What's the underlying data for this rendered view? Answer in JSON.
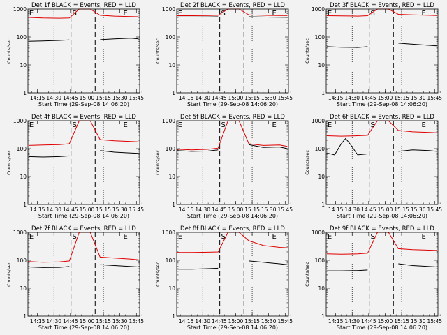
{
  "colors": {
    "background": "#f2f2f2",
    "events": "#000000",
    "lld": "#e00000",
    "axis": "#000000"
  },
  "chart_data": [
    {
      "type": "line",
      "title": "Det 1f BLACK = Events, RED = LLD",
      "xlabel": "Start Time (29-Sep-08 14:06:20)",
      "ylabel": "Counts/sec",
      "y_scale": "log",
      "ylim": [
        1,
        1000
      ],
      "y_ticks": [
        "1",
        "10",
        "100",
        "1000"
      ],
      "x_ticks": [
        "14:15",
        "14:30",
        "14:45",
        "15:00",
        "15:15",
        "15:30",
        "15:45"
      ],
      "markers": [
        "E",
        "S",
        "E"
      ],
      "series": [
        {
          "color": "#000000",
          "x": [
            "14:07",
            "14:20",
            "14:35",
            "14:44",
            "14:53",
            "15:03",
            "15:12",
            "15:25",
            "15:40",
            "15:47"
          ],
          "y": [
            70,
            72,
            75,
            78,
            null,
            null,
            80,
            85,
            90,
            85
          ]
        },
        {
          "color": "#e00000",
          "x": [
            "14:07",
            "14:20",
            "14:35",
            "14:44",
            "14:53",
            "15:03",
            "15:12",
            "15:25",
            "15:40",
            "15:47"
          ],
          "y": [
            500,
            480,
            470,
            480,
            1000,
            1000,
            600,
            560,
            540,
            530
          ]
        }
      ]
    },
    {
      "type": "line",
      "title": "Det 2f BLACK = Events, RED = LLD",
      "xlabel": "Start Time (29-Sep-08 14:06:20)",
      "ylabel": "Counts/sec",
      "y_scale": "log",
      "ylim": [
        1,
        1000
      ],
      "y_ticks": [
        "1",
        "10",
        "100",
        "1000"
      ],
      "x_ticks": [
        "14:15",
        "14:30",
        "14:45",
        "15:00",
        "15:15",
        "15:30",
        "15:45"
      ],
      "markers": [
        "E",
        "S",
        "E"
      ],
      "series": [
        {
          "color": "#000000",
          "x": [
            "14:07",
            "14:20",
            "14:35",
            "14:44",
            "14:53",
            "15:03",
            "15:12",
            "15:25",
            "15:40",
            "15:47"
          ],
          "y": [
            520,
            520,
            525,
            530,
            null,
            null,
            530,
            520,
            510,
            505
          ]
        },
        {
          "color": "#e00000",
          "x": [
            "14:07",
            "14:20",
            "14:35",
            "14:44",
            "14:53",
            "15:03",
            "15:12",
            "15:25",
            "15:40",
            "15:47"
          ],
          "y": [
            580,
            580,
            585,
            600,
            1000,
            1000,
            620,
            600,
            590,
            585
          ]
        }
      ]
    },
    {
      "type": "line",
      "title": "Det 3f BLACK = Events, RED = LLD",
      "xlabel": "Start Time (29-Sep-08 14:06:20)",
      "ylabel": "Counts/sec",
      "y_scale": "log",
      "ylim": [
        1,
        1000
      ],
      "y_ticks": [
        "1",
        "10",
        "100",
        "1000"
      ],
      "x_ticks": [
        "14:15",
        "14:30",
        "14:45",
        "15:00",
        "15:15",
        "15:30",
        "15:45"
      ],
      "markers": [
        "E",
        "S",
        "E"
      ],
      "series": [
        {
          "color": "#000000",
          "x": [
            "14:07",
            "14:20",
            "14:35",
            "14:44",
            "14:53",
            "15:03",
            "15:12",
            "15:25",
            "15:40",
            "15:47"
          ],
          "y": [
            45,
            43,
            42,
            45,
            null,
            null,
            60,
            55,
            50,
            48
          ]
        },
        {
          "color": "#e00000",
          "x": [
            "14:07",
            "14:20",
            "14:35",
            "14:44",
            "14:53",
            "15:03",
            "15:12",
            "15:25",
            "15:40",
            "15:47"
          ],
          "y": [
            580,
            570,
            560,
            580,
            1000,
            1000,
            650,
            620,
            600,
            590
          ]
        }
      ]
    },
    {
      "type": "line",
      "title": "Det 4f BLACK = Events, RED = LLD",
      "xlabel": "Start Time (29-Sep-08 14:06:20)",
      "ylabel": "Counts/sec",
      "y_scale": "log",
      "ylim": [
        1,
        1000
      ],
      "y_ticks": [
        "1",
        "10",
        "100",
        "1000"
      ],
      "x_ticks": [
        "14:15",
        "14:30",
        "14:45",
        "15:00",
        "15:15",
        "15:30",
        "15:45"
      ],
      "markers": [
        "E",
        "S",
        "E"
      ],
      "series": [
        {
          "color": "#000000",
          "x": [
            "14:07",
            "14:20",
            "14:35",
            "14:44",
            "14:53",
            "15:03",
            "15:12",
            "15:25",
            "15:40",
            "15:47"
          ],
          "y": [
            52,
            50,
            52,
            55,
            null,
            null,
            85,
            75,
            70,
            68
          ]
        },
        {
          "color": "#e00000",
          "x": [
            "14:07",
            "14:20",
            "14:35",
            "14:44",
            "14:53",
            "15:03",
            "15:12",
            "15:25",
            "15:40",
            "15:47"
          ],
          "y": [
            130,
            135,
            140,
            150,
            1000,
            1000,
            210,
            190,
            180,
            175
          ]
        }
      ]
    },
    {
      "type": "line",
      "title": "Det 5f BLACK = Events, RED = LLD",
      "xlabel": "Start Time (29-Sep-08 14:06:20)",
      "ylabel": "Counts/sec",
      "y_scale": "log",
      "ylim": [
        1,
        1000
      ],
      "y_ticks": [
        "1",
        "10",
        "100",
        "1000"
      ],
      "x_ticks": [
        "14:15",
        "14:30",
        "14:45",
        "15:00",
        "15:15",
        "15:30",
        "15:45"
      ],
      "markers": [
        "E",
        "S",
        "E"
      ],
      "series": [
        {
          "color": "#000000",
          "x": [
            "14:07",
            "14:20",
            "14:35",
            "14:44",
            "14:53",
            "15:03",
            "15:12",
            "15:25",
            "15:40",
            "15:47"
          ],
          "y": [
            85,
            80,
            82,
            90,
            null,
            null,
            140,
            110,
            115,
            100
          ]
        },
        {
          "color": "#e00000",
          "x": [
            "14:07",
            "14:20",
            "14:35",
            "14:44",
            "14:53",
            "15:03",
            "15:12",
            "15:25",
            "15:40",
            "15:47"
          ],
          "y": [
            95,
            90,
            95,
            105,
            1000,
            1000,
            150,
            130,
            135,
            120
          ]
        }
      ]
    },
    {
      "type": "line",
      "title": "Det 6f BLACK = Events, RED = LLD",
      "xlabel": "Start Time (29-Sep-08 14:06:20)",
      "ylabel": "Counts/sec",
      "y_scale": "log",
      "ylim": [
        1,
        1000
      ],
      "y_ticks": [
        "1",
        "10",
        "100",
        "1000"
      ],
      "x_ticks": [
        "14:15",
        "14:30",
        "14:45",
        "15:00",
        "15:15",
        "15:30",
        "15:45"
      ],
      "markers": [
        "E",
        "S",
        "E"
      ],
      "series": [
        {
          "color": "#000000",
          "x": [
            "14:07",
            "14:14",
            "14:20",
            "14:24",
            "14:28",
            "14:35",
            "14:44",
            "14:53",
            "15:03",
            "15:12",
            "15:25",
            "15:40",
            "15:47"
          ],
          "y": [
            70,
            60,
            150,
            230,
            150,
            60,
            65,
            null,
            null,
            80,
            90,
            85,
            80
          ]
        },
        {
          "color": "#e00000",
          "x": [
            "14:07",
            "14:20",
            "14:35",
            "14:44",
            "14:53",
            "15:03",
            "15:12",
            "15:25",
            "15:40",
            "15:47"
          ],
          "y": [
            290,
            280,
            290,
            300,
            1000,
            1000,
            450,
            400,
            380,
            370
          ]
        }
      ]
    },
    {
      "type": "line",
      "title": "Det 7f BLACK = Events, RED = LLD",
      "xlabel": "Start Time (29-Sep-08 14:06:20)",
      "ylabel": "Counts/sec",
      "y_scale": "log",
      "ylim": [
        1,
        1000
      ],
      "y_ticks": [
        "1",
        "10",
        "100",
        "1000"
      ],
      "x_ticks": [
        "14:15",
        "14:30",
        "14:45",
        "15:00",
        "15:15",
        "15:30",
        "15:45"
      ],
      "markers": [
        "E",
        "S",
        "E"
      ],
      "series": [
        {
          "color": "#000000",
          "x": [
            "14:07",
            "14:20",
            "14:35",
            "14:44",
            "14:53",
            "15:03",
            "15:12",
            "15:25",
            "15:40",
            "15:47"
          ],
          "y": [
            58,
            55,
            56,
            60,
            null,
            null,
            70,
            65,
            60,
            58
          ]
        },
        {
          "color": "#e00000",
          "x": [
            "14:07",
            "14:20",
            "14:35",
            "14:44",
            "14:53",
            "15:03",
            "15:12",
            "15:25",
            "15:40",
            "15:47"
          ],
          "y": [
            90,
            85,
            88,
            95,
            1000,
            1000,
            130,
            120,
            110,
            105
          ]
        }
      ]
    },
    {
      "type": "line",
      "title": "Det 8f BLACK = Events, RED = LLD",
      "xlabel": "Start Time (29-Sep-08 14:06:20)",
      "ylabel": "Counts/sec",
      "y_scale": "log",
      "ylim": [
        1,
        1000
      ],
      "y_ticks": [
        "1",
        "10",
        "100",
        "1000"
      ],
      "x_ticks": [
        "14:15",
        "14:30",
        "14:45",
        "15:00",
        "15:15",
        "15:30",
        "15:45"
      ],
      "markers": [
        "E",
        "S",
        "E"
      ],
      "series": [
        {
          "color": "#000000",
          "x": [
            "14:07",
            "14:20",
            "14:35",
            "14:44",
            "14:53",
            "15:03",
            "15:12",
            "15:25",
            "15:40",
            "15:47"
          ],
          "y": [
            48,
            48,
            50,
            52,
            null,
            null,
            95,
            85,
            75,
            70
          ]
        },
        {
          "color": "#e00000",
          "x": [
            "14:07",
            "14:20",
            "14:35",
            "14:44",
            "14:53",
            "15:03",
            "15:12",
            "15:25",
            "15:40",
            "15:47"
          ],
          "y": [
            190,
            190,
            195,
            200,
            1000,
            1000,
            500,
            340,
            290,
            280
          ]
        }
      ]
    },
    {
      "type": "line",
      "title": "Det 9f BLACK = Events, RED = LLD",
      "xlabel": "Start Time (29-Sep-08 14:06:20)",
      "ylabel": "Counts/sec",
      "y_scale": "log",
      "ylim": [
        1,
        1000
      ],
      "y_ticks": [
        "1",
        "10",
        "100",
        "1000"
      ],
      "x_ticks": [
        "14:15",
        "14:30",
        "14:45",
        "15:00",
        "15:15",
        "15:30",
        "15:45"
      ],
      "markers": [
        "E",
        "S",
        "E"
      ],
      "series": [
        {
          "color": "#000000",
          "x": [
            "14:07",
            "14:20",
            "14:35",
            "14:44",
            "14:53",
            "15:03",
            "15:12",
            "15:25",
            "15:40",
            "15:47"
          ],
          "y": [
            42,
            42,
            43,
            45,
            null,
            null,
            75,
            65,
            60,
            58
          ]
        },
        {
          "color": "#e00000",
          "x": [
            "14:07",
            "14:20",
            "14:35",
            "14:44",
            "14:53",
            "15:03",
            "15:12",
            "15:25",
            "15:40",
            "15:47"
          ],
          "y": [
            170,
            165,
            170,
            180,
            1000,
            1000,
            260,
            240,
            230,
            225
          ]
        }
      ]
    }
  ]
}
